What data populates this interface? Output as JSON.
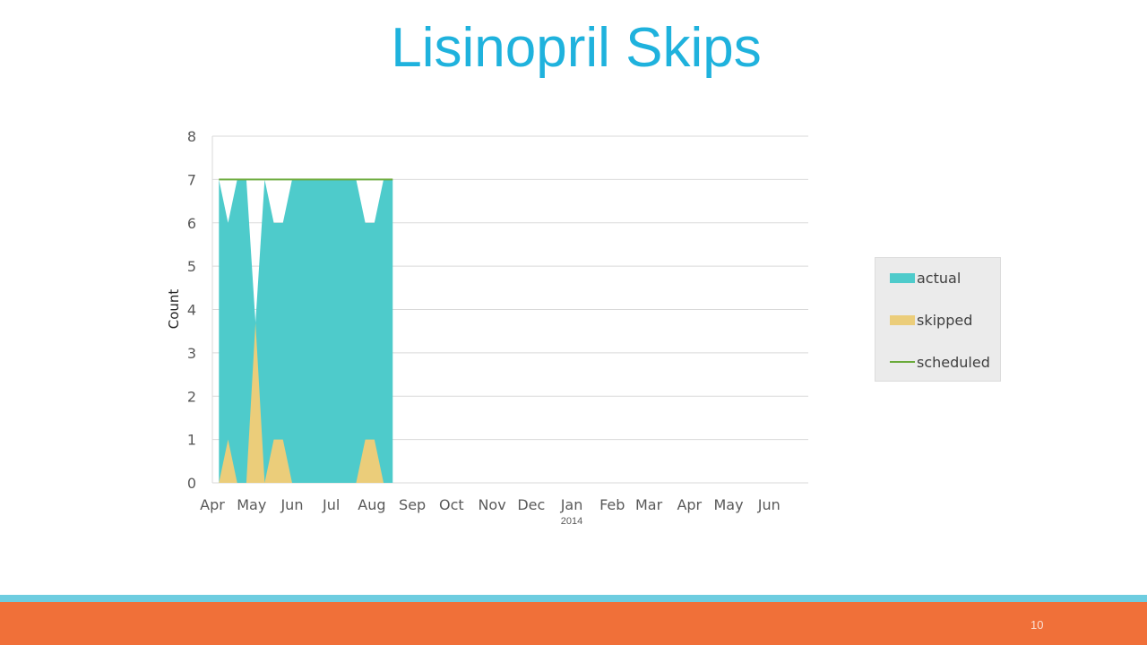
{
  "slide": {
    "title": "Lisinopril Skips",
    "page_number": "10"
  },
  "colors": {
    "title": "#1fb2dd",
    "footer_stripe": "#6ecde0",
    "footer_band": "#f07039"
  },
  "chart_data": {
    "type": "area",
    "title": "",
    "xlabel": "",
    "ylabel": "Count",
    "ylim": [
      0,
      8
    ],
    "yticks": [
      0,
      1,
      2,
      3,
      4,
      5,
      6,
      7,
      8
    ],
    "grid": true,
    "legend_position": "right",
    "x_range": [
      "2013-04-01",
      "2014-07-01"
    ],
    "x_ticks": [
      {
        "date": "2013-04-01",
        "label": "Apr"
      },
      {
        "date": "2013-05-01",
        "label": "May"
      },
      {
        "date": "2013-06-01",
        "label": "Jun"
      },
      {
        "date": "2013-07-01",
        "label": "Jul"
      },
      {
        "date": "2013-08-01",
        "label": "Aug"
      },
      {
        "date": "2013-09-01",
        "label": "Sep"
      },
      {
        "date": "2013-10-01",
        "label": "Oct"
      },
      {
        "date": "2013-11-01",
        "label": "Nov"
      },
      {
        "date": "2013-12-01",
        "label": "Dec"
      },
      {
        "date": "2014-01-01",
        "label": "Jan",
        "sublabel": "2014"
      },
      {
        "date": "2014-02-01",
        "label": "Feb"
      },
      {
        "date": "2014-03-01",
        "label": "Mar"
      },
      {
        "date": "2014-04-01",
        "label": "Apr"
      },
      {
        "date": "2014-05-01",
        "label": "May"
      },
      {
        "date": "2014-06-01",
        "label": "Jun"
      }
    ],
    "series": [
      {
        "name": "actual",
        "type": "area",
        "color": "#4ecbcb",
        "points": [
          [
            "2013-04-06",
            7
          ],
          [
            "2013-04-13",
            6
          ],
          [
            "2013-04-20",
            7
          ],
          [
            "2013-04-27",
            7
          ],
          [
            "2013-05-04",
            3.7
          ],
          [
            "2013-05-11",
            7
          ],
          [
            "2013-05-18",
            6
          ],
          [
            "2013-05-25",
            6
          ],
          [
            "2013-06-01",
            7
          ],
          [
            "2013-06-08",
            7
          ],
          [
            "2013-06-15",
            7
          ],
          [
            "2013-06-22",
            7
          ],
          [
            "2013-06-29",
            7
          ],
          [
            "2013-07-06",
            7
          ],
          [
            "2013-07-13",
            7
          ],
          [
            "2013-07-20",
            7
          ],
          [
            "2013-07-27",
            6
          ],
          [
            "2013-08-03",
            6
          ],
          [
            "2013-08-10",
            7
          ],
          [
            "2013-08-17",
            7
          ]
        ]
      },
      {
        "name": "skipped",
        "type": "area",
        "color": "#ebcd7a",
        "points": [
          [
            "2013-04-06",
            0
          ],
          [
            "2013-04-13",
            1
          ],
          [
            "2013-04-20",
            0
          ],
          [
            "2013-04-27",
            0
          ],
          [
            "2013-05-04",
            3.7
          ],
          [
            "2013-05-11",
            0
          ],
          [
            "2013-05-18",
            1
          ],
          [
            "2013-05-25",
            1
          ],
          [
            "2013-06-01",
            0
          ],
          [
            "2013-06-08",
            0
          ],
          [
            "2013-06-15",
            0
          ],
          [
            "2013-06-22",
            0
          ],
          [
            "2013-06-29",
            0
          ],
          [
            "2013-07-06",
            0
          ],
          [
            "2013-07-13",
            0
          ],
          [
            "2013-07-20",
            0
          ],
          [
            "2013-07-27",
            1
          ],
          [
            "2013-08-03",
            1
          ],
          [
            "2013-08-10",
            0
          ],
          [
            "2013-08-17",
            0
          ]
        ]
      },
      {
        "name": "scheduled",
        "type": "line",
        "color": "#6aaa3a",
        "points": [
          [
            "2013-04-06",
            7
          ],
          [
            "2013-08-17",
            7
          ]
        ]
      }
    ]
  }
}
